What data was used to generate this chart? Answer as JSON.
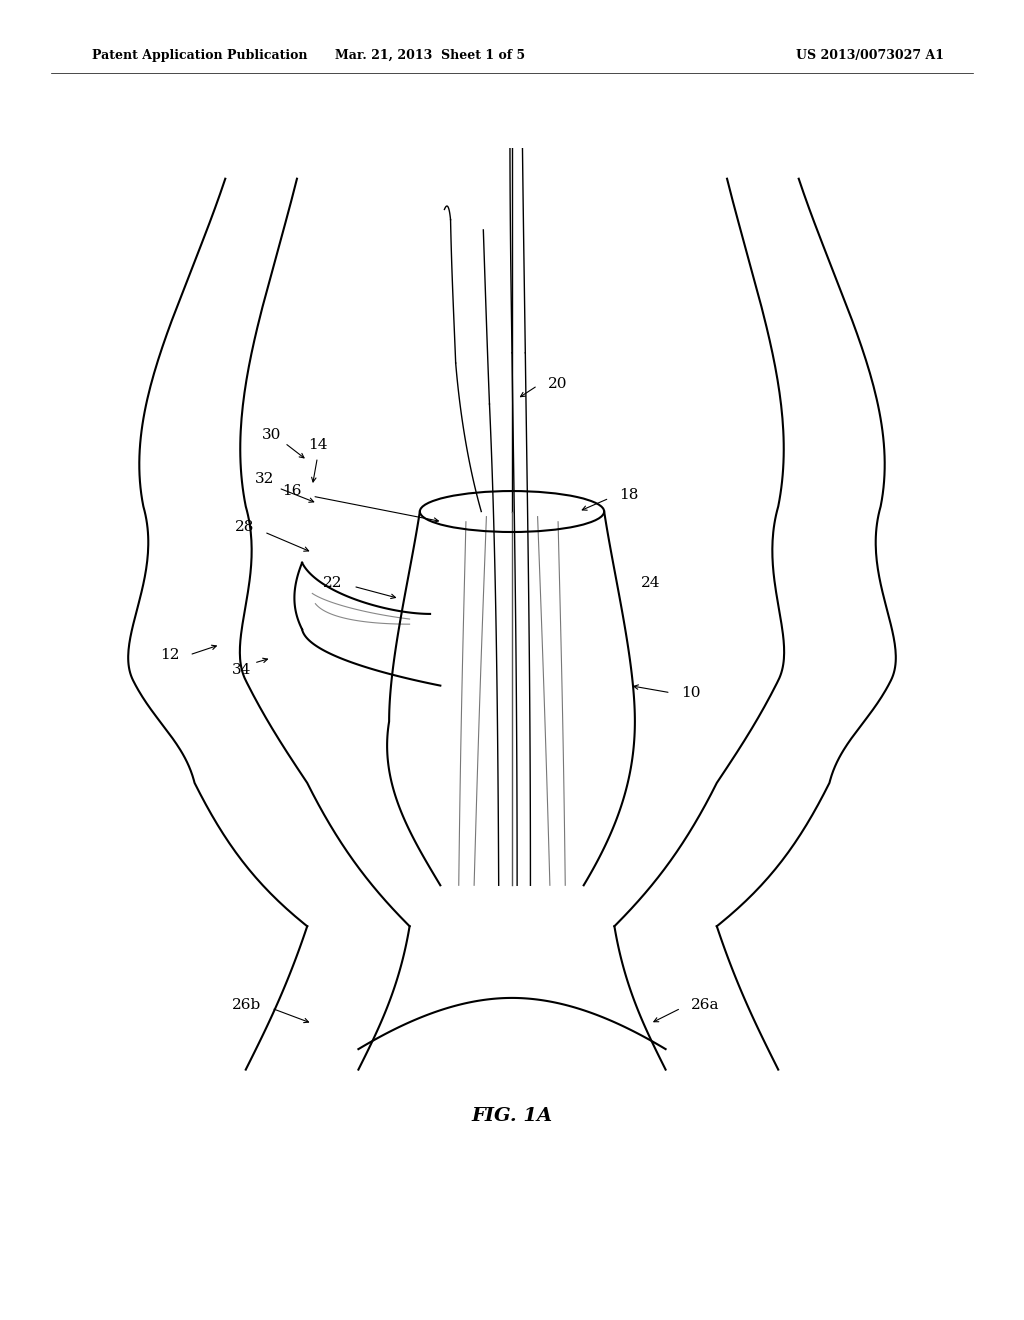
{
  "bg_color": "#ffffff",
  "header_left": "Patent Application Publication",
  "header_mid": "Mar. 21, 2013  Sheet 1 of 5",
  "header_right": "US 2013/0073027 A1",
  "fig_label": "FIG. 1A"
}
